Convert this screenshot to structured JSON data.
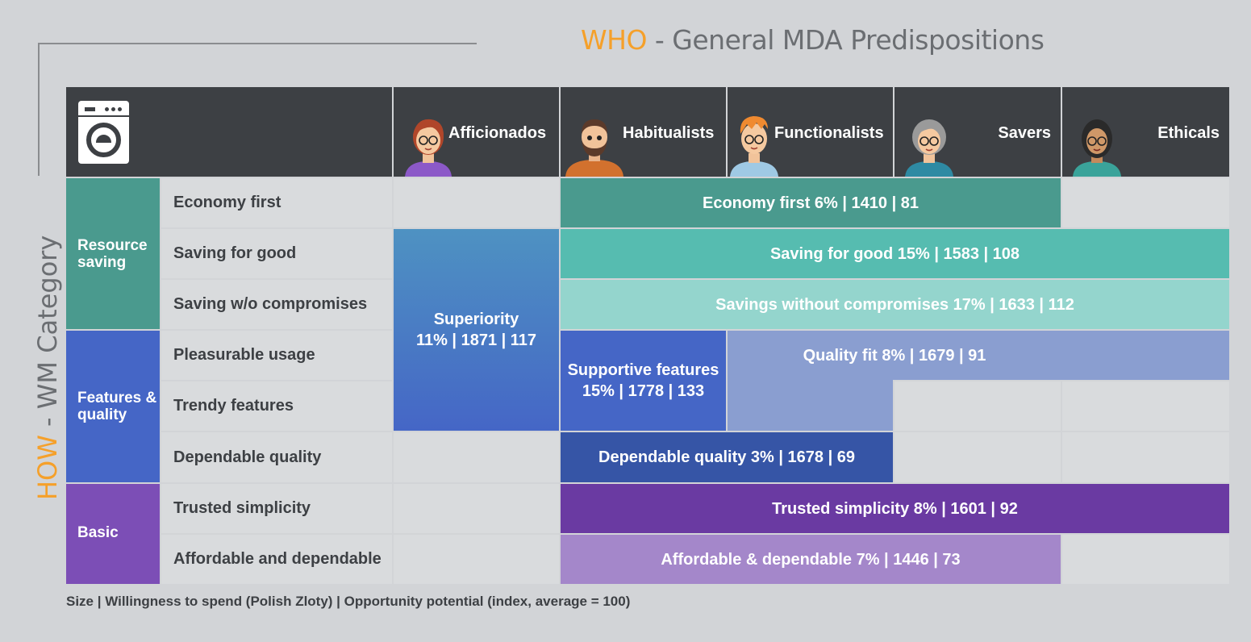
{
  "title": {
    "who": "WHO",
    "rest": " - General MDA Predispositions"
  },
  "side_title": {
    "how": "HOW",
    "rest": " - WM Category"
  },
  "segments": [
    "Afficionados",
    "Habitualists",
    "Functionalists",
    "Savers",
    "Ethicals"
  ],
  "categories": [
    {
      "label": "Resource saving",
      "color": "#4a9a8e"
    },
    {
      "label": "Features & quality",
      "color": "#4566c6"
    },
    {
      "label": "Basic",
      "color": "#7c4eb6"
    }
  ],
  "subcategories": [
    "Economy first",
    "Saving for good",
    "Saving w/o compromises",
    "Pleasurable usage",
    "Trendy features",
    "Dependable quality",
    "Trusted simplicity",
    "Affordable and dependable"
  ],
  "bars": {
    "economy_first": "Economy first 6% | 1410 | 81",
    "saving_for_good": "Saving for good 15% | 1583 | 108",
    "savings_without": "Savings without compromises 17% | 1633 | 112",
    "superiority_1": "Superiority",
    "superiority_2": "11% | 1871 | 117",
    "supportive_1": "Supportive features",
    "supportive_2": "15% | 1778 | 133",
    "quality_fit": "Quality fit 8% | 1679 | 91",
    "dependable_quality": "Dependable quality 3% | 1678 | 69",
    "trusted_simplicity": "Trusted simplicity 8% | 1601 | 92",
    "affordable": "Affordable & dependable 7% | 1446 | 73"
  },
  "colors": {
    "economy_first": "#4a9a8e",
    "saving_for_good": "#56bcb0",
    "savings_without": "#94d5cd",
    "superiority": "#4c7cc4",
    "supportive": "#4566c6",
    "quality_fit": "#8a9ed0",
    "dependable_quality": "#3655a6",
    "trusted_simplicity": "#6a3aa2",
    "affordable": "#a487ca"
  },
  "icons": {
    "appliance": "washing-machine-icon"
  },
  "footnote": "Size | Willingness to spend (Polish Zloty)  | Opportunity potential (index, average = 100)"
}
